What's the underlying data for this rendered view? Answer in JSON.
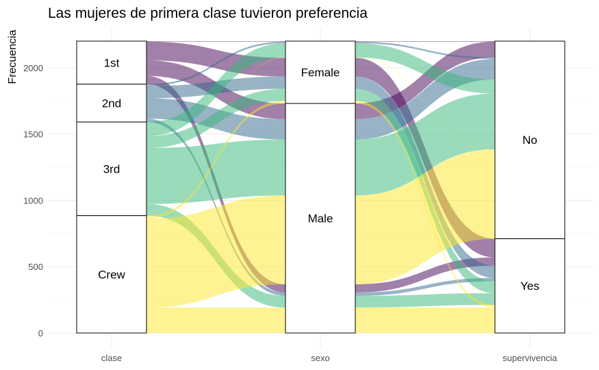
{
  "chart_data": {
    "type": "alluvial",
    "title": "Las mujeres de primera clase tuvieron preferencia",
    "ylabel": "Frecuencia",
    "xlabel": "",
    "ylim": [
      0,
      2201
    ],
    "y_ticks": [
      0,
      500,
      1000,
      1500,
      2000
    ],
    "axes": [
      "clase",
      "sexo",
      "supervivencia"
    ],
    "strata": {
      "clase": [
        "1st",
        "2nd",
        "3rd",
        "Crew"
      ],
      "sexo": [
        "Female",
        "Male"
      ],
      "supervivencia": [
        "No",
        "Yes"
      ]
    },
    "flows": [
      {
        "clase": "1st",
        "sexo": "Male",
        "supervivencia": "No",
        "count": 118,
        "color": "#440154"
      },
      {
        "clase": "1st",
        "sexo": "Male",
        "supervivencia": "Yes",
        "count": 62,
        "color": "#440154"
      },
      {
        "clase": "1st",
        "sexo": "Female",
        "supervivencia": "No",
        "count": 4,
        "color": "#440154"
      },
      {
        "clase": "1st",
        "sexo": "Female",
        "supervivencia": "Yes",
        "count": 141,
        "color": "#440154"
      },
      {
        "clase": "2nd",
        "sexo": "Male",
        "supervivencia": "No",
        "count": 154,
        "color": "#31688E"
      },
      {
        "clase": "2nd",
        "sexo": "Male",
        "supervivencia": "Yes",
        "count": 25,
        "color": "#31688E"
      },
      {
        "clase": "2nd",
        "sexo": "Female",
        "supervivencia": "No",
        "count": 13,
        "color": "#31688E"
      },
      {
        "clase": "2nd",
        "sexo": "Female",
        "supervivencia": "Yes",
        "count": 93,
        "color": "#31688E"
      },
      {
        "clase": "3rd",
        "sexo": "Male",
        "supervivencia": "No",
        "count": 422,
        "color": "#35B779"
      },
      {
        "clase": "3rd",
        "sexo": "Male",
        "supervivencia": "Yes",
        "count": 88,
        "color": "#35B779"
      },
      {
        "clase": "3rd",
        "sexo": "Female",
        "supervivencia": "No",
        "count": 106,
        "color": "#35B779"
      },
      {
        "clase": "3rd",
        "sexo": "Female",
        "supervivencia": "Yes",
        "count": 90,
        "color": "#35B779"
      },
      {
        "clase": "Crew",
        "sexo": "Male",
        "supervivencia": "No",
        "count": 670,
        "color": "#FDE725"
      },
      {
        "clase": "Crew",
        "sexo": "Male",
        "supervivencia": "Yes",
        "count": 192,
        "color": "#FDE725"
      },
      {
        "clase": "Crew",
        "sexo": "Female",
        "supervivencia": "No",
        "count": 3,
        "color": "#FDE725"
      },
      {
        "clase": "Crew",
        "sexo": "Female",
        "supervivencia": "Yes",
        "count": 20,
        "color": "#FDE725"
      }
    ],
    "grid": true,
    "legend": "none"
  }
}
